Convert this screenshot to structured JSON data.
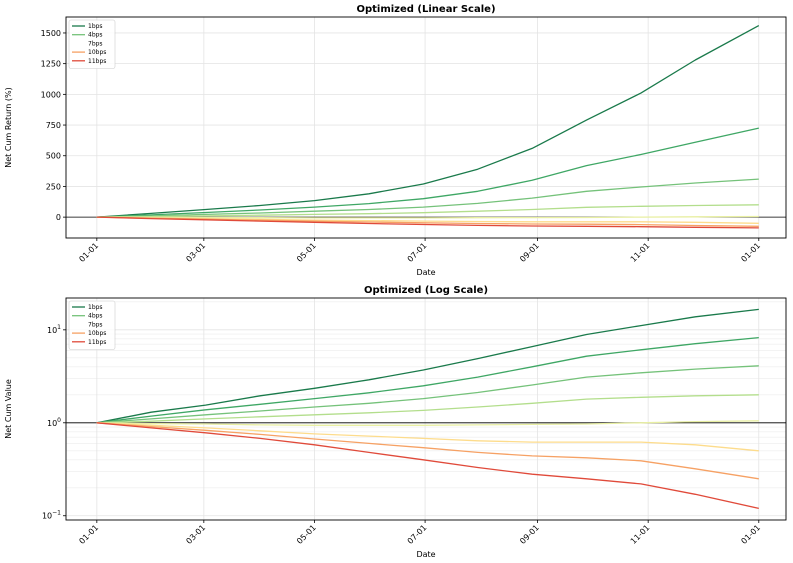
{
  "chart_data": [
    {
      "type": "line",
      "title": "Optimized (Linear Scale)",
      "xlabel": "Date",
      "ylabel": "Net Cum Return (%)",
      "x_ticks": [
        "01-01",
        "03-01",
        "05-01",
        "07-01",
        "09-01",
        "11-01",
        "01-01"
      ],
      "y_ticks": [
        0,
        250,
        500,
        750,
        1000,
        1250,
        1500
      ],
      "ylim": [
        -170,
        1630
      ],
      "grid": true,
      "baseline": 0,
      "legend": [
        "1bps",
        "4bps",
        "7bps",
        "10bps",
        "11bps"
      ],
      "legend_position": "top-left",
      "x": [
        0,
        30,
        60,
        90,
        120,
        150,
        180,
        210,
        240,
        270,
        300,
        330,
        365
      ],
      "series": [
        {
          "name": "1bps",
          "color": "#1a7a4b",
          "values": [
            0,
            30,
            62,
            95,
            135,
            190,
            270,
            390,
            560,
            790,
            1010,
            1280,
            1560
          ]
        },
        {
          "color": "#3fa765",
          "values": [
            0,
            18,
            38,
            58,
            82,
            110,
            150,
            210,
            300,
            420,
            510,
            610,
            725
          ]
        },
        {
          "name": "4bps",
          "color": "#75c27a",
          "values": [
            0,
            10,
            22,
            34,
            48,
            62,
            82,
            112,
            155,
            210,
            245,
            278,
            310
          ]
        },
        {
          "color": "#b3de8c",
          "values": [
            0,
            4,
            10,
            16,
            22,
            28,
            36,
            48,
            62,
            80,
            88,
            95,
            100
          ]
        },
        {
          "name": "7bps",
          "color": "#e8efa2",
          "values": [
            0,
            -2,
            -3,
            -5,
            -6,
            -6,
            -6,
            -5,
            -4,
            -3,
            0,
            3,
            5
          ]
        },
        {
          "color": "#fddc8c",
          "values": [
            0,
            -6,
            -12,
            -18,
            -24,
            -28,
            -32,
            -36,
            -38,
            -38,
            -38,
            -42,
            -50
          ]
        },
        {
          "name": "10bps",
          "color": "#f6a164",
          "values": [
            0,
            -9,
            -17,
            -25,
            -33,
            -40,
            -46,
            -52,
            -56,
            -58,
            -61,
            -68,
            -75
          ]
        },
        {
          "name": "11bps",
          "color": "#e04a3a",
          "values": [
            0,
            -12,
            -22,
            -32,
            -42,
            -52,
            -60,
            -67,
            -72,
            -75,
            -78,
            -83,
            -88
          ]
        }
      ]
    },
    {
      "type": "line",
      "title": "Optimized (Log Scale)",
      "xlabel": "Date",
      "ylabel": "Net Cum Value",
      "y_scale": "log",
      "x_ticks": [
        "01-01",
        "03-01",
        "05-01",
        "07-01",
        "09-01",
        "11-01",
        "01-01"
      ],
      "y_ticks": [
        0.1,
        1,
        10
      ],
      "y_tick_labels": {
        "base": "10",
        "exponents": [
          "−1",
          "0",
          "1"
        ]
      },
      "ylim": [
        0.09,
        22
      ],
      "grid": true,
      "baseline": 1,
      "legend": [
        "1bps",
        "4bps",
        "7bps",
        "10bps",
        "11bps"
      ],
      "legend_position": "top-left",
      "x": [
        0,
        30,
        60,
        90,
        120,
        150,
        180,
        210,
        240,
        270,
        300,
        330,
        365
      ],
      "series": [
        {
          "name": "1bps",
          "color": "#1a7a4b",
          "values": [
            1.0,
            1.3,
            1.55,
            1.95,
            2.35,
            2.9,
            3.7,
            4.9,
            6.6,
            8.9,
            11.1,
            13.8,
            16.6
          ]
        },
        {
          "color": "#3fa765",
          "values": [
            1.0,
            1.18,
            1.38,
            1.58,
            1.82,
            2.1,
            2.5,
            3.1,
            4.0,
            5.2,
            6.1,
            7.1,
            8.25
          ]
        },
        {
          "name": "4bps",
          "color": "#75c27a",
          "values": [
            1.0,
            1.1,
            1.22,
            1.34,
            1.48,
            1.62,
            1.82,
            2.12,
            2.55,
            3.1,
            3.45,
            3.78,
            4.1
          ]
        },
        {
          "color": "#b3de8c",
          "values": [
            1.0,
            1.04,
            1.1,
            1.16,
            1.22,
            1.28,
            1.36,
            1.48,
            1.62,
            1.8,
            1.88,
            1.95,
            2.0
          ]
        },
        {
          "name": "7bps",
          "color": "#e8efa2",
          "values": [
            1.0,
            0.98,
            0.97,
            0.95,
            0.94,
            0.94,
            0.94,
            0.95,
            0.96,
            0.97,
            1.0,
            1.03,
            1.05
          ]
        },
        {
          "color": "#fddc8c",
          "values": [
            1.0,
            0.94,
            0.88,
            0.82,
            0.76,
            0.72,
            0.68,
            0.64,
            0.62,
            0.62,
            0.62,
            0.58,
            0.5
          ]
        },
        {
          "name": "10bps",
          "color": "#f6a164",
          "values": [
            1.0,
            0.91,
            0.83,
            0.75,
            0.67,
            0.6,
            0.54,
            0.48,
            0.44,
            0.42,
            0.39,
            0.32,
            0.25
          ]
        },
        {
          "name": "11bps",
          "color": "#e04a3a",
          "values": [
            1.0,
            0.88,
            0.78,
            0.68,
            0.58,
            0.48,
            0.4,
            0.33,
            0.28,
            0.25,
            0.22,
            0.17,
            0.12
          ]
        }
      ]
    }
  ]
}
